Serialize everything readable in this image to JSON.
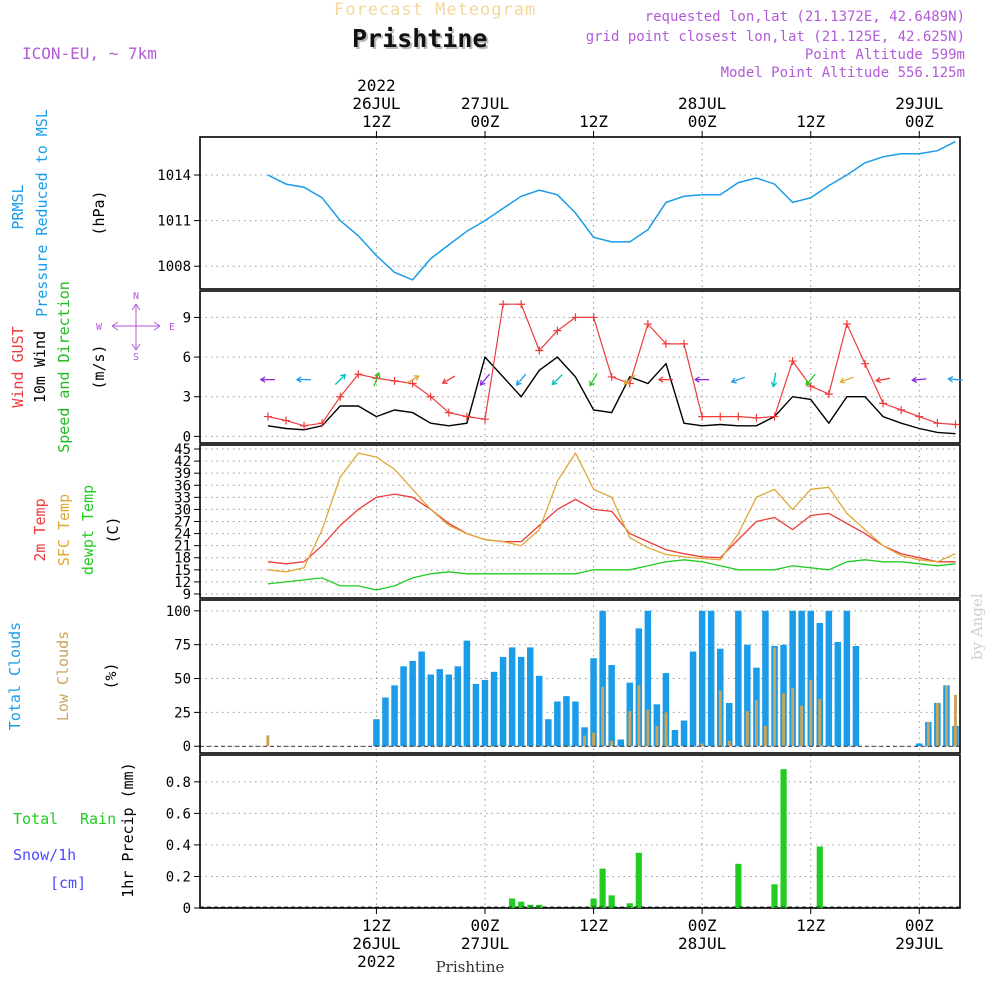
{
  "header": {
    "product_title": "Forecast Meteogram",
    "location_title": "Prishtine",
    "model_label": "ICON-EU, ~ 7km",
    "requested_coords": "requested lon,lat (21.1372E, 42.6489N)",
    "grid_coords": "grid point closest lon,lat (21.125E, 42.625N)",
    "point_altitude": "Point Altitude 599m",
    "model_altitude": "Model Point Altitude 556.125m",
    "bottom_label": "Prishtine",
    "watermark": "by Angel"
  },
  "colors": {
    "pressure": "#1a9ce8",
    "gust": "#ee3b3b",
    "wind": "#000000",
    "temp": "#ee3b3b",
    "sfc_temp": "#e0a836",
    "dewpt": "#22cc22",
    "total_clouds": "#1a9ce8",
    "low_clouds": "#c9a45a",
    "rain": "#22cc22",
    "snow": "#4a4aff",
    "direction": "#22bb22",
    "compass": "#b25ad8",
    "grid": "#9a9a9a"
  },
  "chart_data": [
    {
      "type": "line",
      "id": "pressure",
      "title": "Pressure Reduced to MSL",
      "short_label": "PRMSL",
      "ylabel": "(hPa)",
      "ylim": [
        1006.5,
        1016.5
      ],
      "yticks": [
        1008,
        1011,
        1014
      ],
      "x_start_hour": 0,
      "x_end_hour": 76,
      "x_hours": [
        0,
        2,
        4,
        6,
        8,
        10,
        12,
        14,
        16,
        18,
        20,
        22,
        24,
        26,
        28,
        30,
        32,
        34,
        36,
        38,
        40,
        42,
        44,
        46,
        48,
        50,
        52,
        54,
        56,
        58,
        60,
        62,
        64,
        66,
        68,
        70,
        72,
        74,
        76
      ],
      "values": [
        1014,
        1013.4,
        1013.2,
        1012.5,
        1011,
        1010,
        1008.7,
        1007.6,
        1007.1,
        1008.5,
        1009.4,
        1010.3,
        1011,
        1011.8,
        1012.6,
        1013,
        1012.7,
        1011.5,
        1009.9,
        1009.6,
        1009.6,
        1010.4,
        1012.2,
        1012.6,
        1012.7,
        1012.7,
        1013.5,
        1013.8,
        1013.4,
        1012.2,
        1012.5,
        1013.3,
        1014,
        1014.8,
        1015.2,
        1015.4,
        1015.4,
        1015.6,
        1016.2
      ]
    },
    {
      "type": "line",
      "id": "wind",
      "title": "Speed and Direction",
      "series_labels": [
        "Wind GUST",
        "10m Wind",
        "Speed and Direction"
      ],
      "ylabel": "(m/s)",
      "compass": {
        "north": "N",
        "south": "S",
        "east": "E",
        "west": "W"
      },
      "ylim": [
        -0.5,
        11
      ],
      "yticks": [
        0,
        3,
        6,
        9
      ],
      "x_hours": [
        0,
        2,
        4,
        6,
        8,
        10,
        12,
        14,
        16,
        18,
        20,
        22,
        24,
        26,
        28,
        30,
        32,
        34,
        36,
        38,
        40,
        42,
        44,
        46,
        48,
        50,
        52,
        54,
        56,
        58,
        60,
        62,
        64,
        66,
        68,
        70,
        72,
        74,
        76
      ],
      "series": [
        {
          "name": "Wind GUST",
          "values": [
            1.5,
            1.2,
            0.8,
            1,
            3,
            4.7,
            4.4,
            4.2,
            4,
            3,
            1.8,
            1.5,
            1.3,
            10,
            10,
            6.5,
            8,
            9,
            9,
            4.5,
            4,
            8.5,
            7,
            7,
            1.5,
            1.5,
            1.5,
            1.4,
            1.5,
            5.7,
            3.8,
            3.2,
            8.5,
            5.5,
            2.5,
            2,
            1.5,
            1,
            0.9
          ]
        },
        {
          "name": "10m Wind",
          "values": [
            0.8,
            0.6,
            0.5,
            0.8,
            2.3,
            2.3,
            1.5,
            2,
            1.8,
            1,
            0.8,
            1,
            6,
            4.5,
            3,
            5,
            6,
            4.5,
            2,
            1.8,
            4.5,
            4,
            5.5,
            1,
            0.8,
            0.9,
            0.8,
            0.8,
            1.5,
            3,
            2.8,
            1,
            3,
            3,
            1.5,
            1,
            0.6,
            0.3,
            0.2
          ]
        }
      ],
      "direction_hours": [
        0,
        4,
        8,
        12,
        16,
        20,
        24,
        28,
        32,
        36,
        40,
        44,
        48,
        52,
        56,
        60,
        64,
        68,
        72,
        76
      ],
      "direction_deg_to": [
        270,
        270,
        45,
        20,
        60,
        240,
        220,
        220,
        225,
        210,
        230,
        270,
        270,
        250,
        190,
        220,
        250,
        260,
        265,
        275
      ]
    },
    {
      "type": "line",
      "id": "temperature",
      "series_labels": [
        "2m Temp",
        "SFC Temp",
        "dewpt Temp"
      ],
      "ylabel": "(C)",
      "ylim": [
        8,
        46
      ],
      "yticks": [
        9,
        12,
        15,
        18,
        21,
        24,
        27,
        30,
        33,
        36,
        39,
        42,
        45
      ],
      "x_hours": [
        0,
        2,
        4,
        6,
        8,
        10,
        12,
        14,
        16,
        18,
        20,
        22,
        24,
        26,
        28,
        30,
        32,
        34,
        36,
        38,
        40,
        42,
        44,
        46,
        48,
        50,
        52,
        54,
        56,
        58,
        60,
        62,
        64,
        66,
        68,
        70,
        72,
        74,
        76
      ],
      "series": [
        {
          "name": "2m Temp",
          "values": [
            17,
            16.5,
            17,
            21,
            26,
            30,
            33,
            33.8,
            33,
            30,
            26.5,
            24,
            22.5,
            22,
            22,
            26,
            30,
            32.5,
            30,
            29.5,
            24,
            22,
            20,
            19,
            18.2,
            18,
            22.5,
            27,
            28,
            25,
            28.5,
            29,
            26.5,
            24,
            21,
            19,
            18,
            17,
            17
          ]
        },
        {
          "name": "SFC Temp",
          "values": [
            15,
            14.5,
            15.5,
            25,
            38,
            44,
            43,
            40,
            35,
            30,
            26,
            24,
            22.5,
            22,
            21,
            25,
            37,
            44,
            35,
            33,
            23,
            20.5,
            18.8,
            18.2,
            17.8,
            17.5,
            24,
            33,
            35,
            30,
            35,
            35.5,
            29,
            25,
            21,
            18.5,
            17.5,
            17,
            19
          ]
        },
        {
          "name": "dewpt Temp",
          "values": [
            11.5,
            12,
            12.5,
            13,
            11,
            11,
            10,
            11,
            13,
            14,
            14.5,
            14,
            14,
            14,
            14,
            14,
            14,
            14,
            15,
            15,
            15,
            16,
            17,
            17.5,
            17,
            16,
            15,
            15,
            15,
            16,
            15.5,
            15,
            17,
            17.5,
            17,
            17,
            16.5,
            16,
            16.5
          ]
        }
      ]
    },
    {
      "type": "bar",
      "id": "clouds",
      "series_labels": [
        "Total Clouds",
        "Low Clouds"
      ],
      "ylabel": "(%)",
      "ylim": [
        -5,
        108
      ],
      "yticks": [
        0,
        25,
        50,
        75,
        100
      ],
      "x_hours": [
        0,
        1,
        2,
        3,
        4,
        5,
        6,
        7,
        8,
        9,
        10,
        11,
        12,
        13,
        14,
        15,
        16,
        17,
        18,
        19,
        20,
        21,
        22,
        23,
        24,
        25,
        26,
        27,
        28,
        29,
        30,
        31,
        32,
        33,
        34,
        35,
        36,
        37,
        38,
        39,
        40,
        41,
        42,
        43,
        44,
        45,
        46,
        47,
        48,
        49,
        50,
        51,
        52,
        53,
        54,
        55,
        56,
        57,
        58,
        59,
        60,
        61,
        62,
        63,
        64,
        65,
        66,
        67,
        68,
        69,
        70,
        71,
        72,
        73,
        74,
        75,
        76
      ],
      "series": [
        {
          "name": "Total Clouds",
          "values": [
            0,
            0,
            0,
            0,
            0,
            0,
            0,
            0,
            0,
            0,
            0,
            0,
            20,
            36,
            45,
            59,
            63,
            70,
            53,
            57,
            53,
            59,
            78,
            46,
            49,
            55,
            66,
            73,
            66,
            73,
            52,
            20,
            33,
            37,
            33,
            14,
            65,
            100,
            60,
            5,
            47,
            87,
            100,
            31,
            54,
            12,
            19,
            70,
            100,
            100,
            72,
            32,
            100,
            75,
            58,
            100,
            74,
            75,
            100,
            100,
            100,
            91,
            100,
            77,
            100,
            74,
            0,
            0,
            0,
            0,
            0,
            0,
            2,
            18,
            32,
            45,
            15
          ]
        },
        {
          "name": "Low Clouds",
          "values": [
            8,
            0,
            0,
            0,
            0,
            0,
            0,
            0,
            0,
            0,
            0,
            0,
            0,
            0,
            0,
            0,
            0,
            0,
            0,
            0,
            0,
            0,
            0,
            0,
            0,
            0,
            0,
            0,
            0,
            0,
            0,
            0,
            0,
            0,
            0,
            8,
            10,
            44,
            4,
            0,
            26,
            45,
            27,
            15,
            25,
            0,
            0,
            0,
            2,
            0,
            41,
            4,
            0,
            26,
            34,
            15,
            73,
            39,
            43,
            30,
            49,
            35,
            0,
            0,
            0,
            0,
            0,
            0,
            0,
            0,
            0,
            0,
            0,
            18,
            32,
            45,
            38
          ]
        }
      ]
    },
    {
      "type": "bar",
      "id": "precip",
      "series_labels": [
        "Total",
        "Rain",
        "Snow/1h",
        "[cm]"
      ],
      "ylabel": "1hr Precip (mm)",
      "ylim": [
        0,
        0.97
      ],
      "yticks": [
        0,
        0.2,
        0.4,
        0.6,
        0.8
      ],
      "x_hours": [
        27,
        28,
        29,
        30,
        36,
        37,
        38,
        40,
        41,
        52,
        56,
        57,
        61
      ],
      "values": [
        0.06,
        0.04,
        0.02,
        0.02,
        0.06,
        0.25,
        0.08,
        0.03,
        0.35,
        0.28,
        0.15,
        0.88,
        0.39
      ]
    }
  ],
  "time_axis": {
    "top_ticks": [
      {
        "hour": 12,
        "lines": [
          "2022",
          "26JUL",
          "12Z"
        ]
      },
      {
        "hour": 24,
        "lines": [
          "27JUL",
          "00Z"
        ]
      },
      {
        "hour": 36,
        "lines": [
          "12Z"
        ]
      },
      {
        "hour": 48,
        "lines": [
          "28JUL",
          "00Z"
        ]
      },
      {
        "hour": 60,
        "lines": [
          "12Z"
        ]
      },
      {
        "hour": 72,
        "lines": [
          "29JUL",
          "00Z"
        ]
      }
    ],
    "bottom_ticks": [
      {
        "hour": 12,
        "lines": [
          "12Z",
          "26JUL",
          "2022"
        ]
      },
      {
        "hour": 24,
        "lines": [
          "00Z",
          "27JUL"
        ]
      },
      {
        "hour": 36,
        "lines": [
          "12Z"
        ]
      },
      {
        "hour": 48,
        "lines": [
          "00Z",
          "28JUL"
        ]
      },
      {
        "hour": 60,
        "lines": [
          "12Z"
        ]
      },
      {
        "hour": 72,
        "lines": [
          "00Z",
          "29JUL"
        ]
      }
    ]
  }
}
